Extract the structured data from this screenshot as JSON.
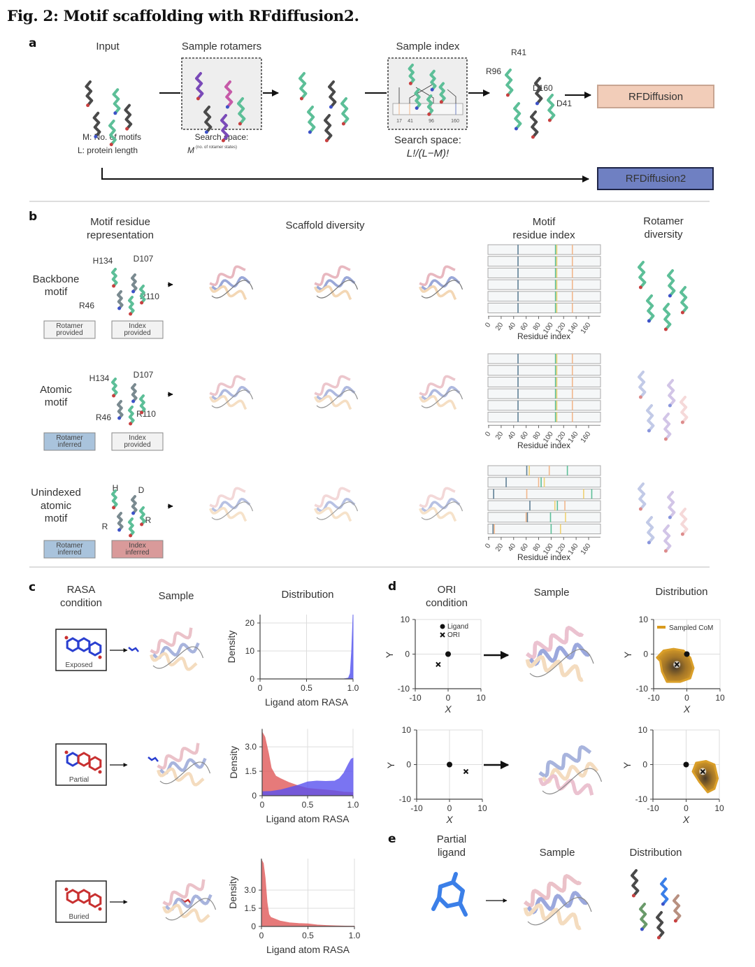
{
  "title": "Fig. 2: Motif scaffolding with RFdiffusion2.",
  "panel_a": {
    "label": "a",
    "headers": {
      "input": "Input",
      "sample_rotamers": "Sample rotamers",
      "sample_index": "Sample index"
    },
    "input_notes": [
      "M: No. of motifs",
      "L: protein length"
    ],
    "rotamer_search": {
      "label": "Search space:",
      "base": "M",
      "exponent": "(no. of rotamer states)"
    },
    "index_search": {
      "label": "Search space:",
      "formula": "L!/(L−M)!"
    },
    "index_ticks": [
      "17",
      "41",
      "96",
      "160"
    ],
    "residue_labels": [
      "R41",
      "R96",
      "D160",
      "D41"
    ],
    "methods": [
      {
        "label": "RFDiffusion",
        "color": "#f2cdb9"
      },
      {
        "label": "RFDiffusion2",
        "color": "#6f80c2"
      }
    ]
  },
  "panel_b": {
    "label": "b",
    "headers": {
      "representation": [
        "Motif residue",
        "representation"
      ],
      "scaffold": "Scaffold diversity",
      "index": [
        "Motif",
        "residue index"
      ],
      "rotamer": [
        "Rotamer",
        "diversity"
      ]
    },
    "index_axis": {
      "ticks": [
        0,
        20,
        40,
        60,
        80,
        100,
        120,
        140,
        160
      ],
      "xlabel": "Residue index",
      "xlim": [
        0,
        184
      ]
    },
    "track_colors": {
      "blue": "#5f7f95",
      "green": "#5dbf98",
      "yellow": "#efd173",
      "orange": "#f1b78c"
    },
    "rows": [
      {
        "name": [
          "Backbone",
          "motif"
        ],
        "residues": [
          "H134",
          "D107",
          "R46",
          "R110"
        ],
        "tags": [
          {
            "lines": [
              "Rotamer",
              "provided"
            ],
            "color": "#f2f2f2"
          },
          {
            "lines": [
              "Index",
              "provided"
            ],
            "color": "#f2f2f2"
          }
        ],
        "tracks": [
          [
            [
              47,
              "blue"
            ],
            [
              107,
              "green"
            ],
            [
              109,
              "yellow"
            ],
            [
              134,
              "orange"
            ]
          ],
          [
            [
              47,
              "blue"
            ],
            [
              107,
              "green"
            ],
            [
              109,
              "yellow"
            ],
            [
              134,
              "orange"
            ]
          ],
          [
            [
              47,
              "blue"
            ],
            [
              107,
              "green"
            ],
            [
              109,
              "yellow"
            ],
            [
              134,
              "orange"
            ]
          ],
          [
            [
              47,
              "blue"
            ],
            [
              107,
              "green"
            ],
            [
              109,
              "yellow"
            ],
            [
              134,
              "orange"
            ]
          ],
          [
            [
              47,
              "blue"
            ],
            [
              107,
              "green"
            ],
            [
              109,
              "yellow"
            ],
            [
              134,
              "orange"
            ]
          ],
          [
            [
              47,
              "blue"
            ],
            [
              107,
              "green"
            ],
            [
              109,
              "yellow"
            ],
            [
              134,
              "orange"
            ]
          ]
        ]
      },
      {
        "name": [
          "Atomic",
          "motif"
        ],
        "residues": [
          "H134",
          "D107",
          "R46",
          "R110"
        ],
        "tags": [
          {
            "lines": [
              "Rotamer",
              "inferred"
            ],
            "color": "#a9c3dc"
          },
          {
            "lines": [
              "Index",
              "provided"
            ],
            "color": "#f2f2f2"
          }
        ],
        "tracks": [
          [
            [
              47,
              "blue"
            ],
            [
              107,
              "green"
            ],
            [
              109,
              "yellow"
            ],
            [
              134,
              "orange"
            ]
          ],
          [
            [
              47,
              "blue"
            ],
            [
              107,
              "green"
            ],
            [
              109,
              "yellow"
            ],
            [
              134,
              "orange"
            ]
          ],
          [
            [
              47,
              "blue"
            ],
            [
              107,
              "green"
            ],
            [
              109,
              "yellow"
            ],
            [
              134,
              "orange"
            ]
          ],
          [
            [
              47,
              "blue"
            ],
            [
              107,
              "green"
            ],
            [
              109,
              "yellow"
            ],
            [
              134,
              "orange"
            ]
          ],
          [
            [
              47,
              "blue"
            ],
            [
              107,
              "green"
            ],
            [
              109,
              "yellow"
            ],
            [
              134,
              "orange"
            ]
          ],
          [
            [
              47,
              "blue"
            ],
            [
              107,
              "green"
            ],
            [
              109,
              "yellow"
            ],
            [
              134,
              "orange"
            ]
          ]
        ]
      },
      {
        "name": [
          "Unindexed",
          "atomic",
          "motif"
        ],
        "residues": [
          "H",
          "D",
          "R",
          "R"
        ],
        "tags": [
          {
            "lines": [
              "Rotamer",
              "inferred"
            ],
            "color": "#a9c3dc"
          },
          {
            "lines": [
              "Index",
              "inferred"
            ],
            "color": "#d99a9a"
          }
        ],
        "tracks": [
          [
            [
              61,
              "blue"
            ],
            [
              65,
              "yellow"
            ],
            [
              97,
              "orange"
            ],
            [
              126,
              "green"
            ]
          ],
          [
            [
              28,
              "blue"
            ],
            [
              80,
              "orange"
            ],
            [
              84,
              "green"
            ],
            [
              89,
              "yellow"
            ]
          ],
          [
            [
              8,
              "blue"
            ],
            [
              61,
              "orange"
            ],
            [
              152,
              "yellow"
            ],
            [
              165,
              "green"
            ]
          ],
          [
            [
              66,
              "blue"
            ],
            [
              106,
              "yellow"
            ],
            [
              110,
              "green"
            ],
            [
              122,
              "orange"
            ]
          ],
          [
            [
              60,
              "orange"
            ],
            [
              62,
              "blue"
            ],
            [
              99,
              "green"
            ],
            [
              123,
              "yellow"
            ]
          ],
          [
            [
              7,
              "blue"
            ],
            [
              9,
              "orange"
            ],
            [
              100,
              "green"
            ],
            [
              115,
              "yellow"
            ]
          ]
        ]
      }
    ]
  },
  "panel_c": {
    "label": "c",
    "headers": {
      "condition": [
        "RASA",
        "condition"
      ],
      "sample": "Sample",
      "distribution": "Distribution"
    },
    "conditions": [
      "Exposed",
      "Partial",
      "Buried"
    ]
  },
  "panel_d": {
    "label": "d",
    "headers": {
      "condition": [
        "ORI",
        "condition"
      ],
      "sample": "Sample",
      "distribution": "Distribution"
    }
  },
  "panel_e": {
    "label": "e",
    "headers": {
      "condition": [
        "Partial",
        "ligand"
      ],
      "sample": "Sample",
      "distribution": "Distribution"
    }
  },
  "chart_data": [
    {
      "type": "area",
      "panel": "c",
      "condition": "Exposed",
      "xlabel": "Ligand atom RASA",
      "ylabel": "Density",
      "xlim": [
        0,
        1
      ],
      "ylim": [
        0,
        23
      ],
      "xticks": [
        0,
        0.5,
        1.0
      ],
      "xticklabels": [
        "0",
        "0.5",
        "1.0"
      ],
      "yticks": [
        0,
        10,
        20
      ],
      "yticklabels": [
        "0",
        "10",
        "20"
      ],
      "grid": true,
      "series": [
        {
          "color": "#4f4ff0",
          "x": [
            0,
            0.9,
            0.95,
            0.97,
            0.985,
            0.995,
            1.0
          ],
          "y": [
            0,
            0,
            0.3,
            2,
            10,
            18,
            23
          ]
        }
      ]
    },
    {
      "type": "area",
      "panel": "c",
      "condition": "Partial",
      "xlabel": "Ligand atom RASA",
      "ylabel": "Density",
      "xlim": [
        0,
        1
      ],
      "ylim": [
        0,
        4.1
      ],
      "xticks": [
        0,
        0.5,
        1.0
      ],
      "xticklabels": [
        "0",
        "0.5",
        "1.0"
      ],
      "yticks": [
        0,
        1.5,
        3.0
      ],
      "yticklabels": [
        "0",
        "1.5",
        "3.0"
      ],
      "grid": true,
      "series": [
        {
          "color": "#e05a5a",
          "x": [
            0,
            0.03,
            0.07,
            0.1,
            0.15,
            0.2,
            0.3,
            0.4,
            0.5,
            0.6,
            0.7,
            0.8,
            0.9,
            1.0
          ],
          "y": [
            3.9,
            3.6,
            2.6,
            1.7,
            1.2,
            1.05,
            0.8,
            0.6,
            0.45,
            0.4,
            0.35,
            0.3,
            0.22,
            0.2
          ]
        },
        {
          "color": "#5a52f0",
          "x": [
            0,
            0.1,
            0.2,
            0.3,
            0.4,
            0.5,
            0.6,
            0.7,
            0.8,
            0.85,
            0.9,
            0.95,
            0.98,
            1.0
          ],
          "y": [
            0.25,
            0.27,
            0.35,
            0.5,
            0.65,
            0.85,
            0.9,
            0.88,
            0.9,
            1.05,
            1.4,
            1.95,
            2.25,
            2.3
          ]
        }
      ]
    },
    {
      "type": "area",
      "panel": "c",
      "condition": "Buried",
      "xlabel": "Ligand atom RASA",
      "ylabel": "Density",
      "xlim": [
        0,
        1
      ],
      "ylim": [
        0,
        5.6
      ],
      "xticks": [
        0,
        0.5,
        1.0
      ],
      "xticklabels": [
        "0",
        "0.5",
        "1.0"
      ],
      "yticks": [
        0,
        1.5,
        3.0
      ],
      "yticklabels": [
        "0",
        "1.5",
        "3.0"
      ],
      "grid": true,
      "series": [
        {
          "color": "#e05a5a",
          "x": [
            0,
            0.02,
            0.04,
            0.06,
            0.08,
            0.1,
            0.15,
            0.2,
            0.3,
            0.4,
            0.5,
            0.6,
            0.7,
            0.8,
            0.9,
            1.0
          ],
          "y": [
            5.5,
            5.2,
            4.0,
            2.0,
            1.0,
            0.75,
            0.6,
            0.45,
            0.3,
            0.25,
            0.22,
            0.12,
            0.08,
            0.05,
            0.03,
            0.02
          ]
        }
      ]
    },
    {
      "type": "scatter",
      "panel": "d",
      "role": "ORI condition",
      "xlabel": "X",
      "ylabel": "Y",
      "xlim": [
        -10,
        10
      ],
      "ylim": [
        -10,
        10
      ],
      "xticks": [
        -10,
        0,
        10
      ],
      "yticks": [
        -10,
        0,
        10
      ],
      "grid": true,
      "legend": "top-right",
      "series": [
        {
          "name": "Ligand",
          "marker": "circle",
          "x": [
            0
          ],
          "y": [
            0
          ]
        },
        {
          "name": "ORI",
          "marker": "x",
          "x": [
            -3
          ],
          "y": [
            -3
          ]
        }
      ]
    },
    {
      "type": "scatter",
      "panel": "d",
      "role": "ORI condition",
      "xlabel": "X",
      "ylabel": "Y",
      "xlim": [
        -10,
        10
      ],
      "ylim": [
        -10,
        10
      ],
      "xticks": [
        -10,
        0,
        10
      ],
      "yticks": [
        -10,
        0,
        10
      ],
      "grid": true,
      "series": [
        {
          "marker": "circle",
          "x": [
            0
          ],
          "y": [
            0
          ]
        },
        {
          "marker": "x",
          "x": [
            5
          ],
          "y": [
            -2
          ]
        }
      ]
    },
    {
      "type": "scatter",
      "panel": "d",
      "role": "Distribution",
      "xlabel": "X",
      "ylabel": "Y",
      "xlim": [
        -10,
        10
      ],
      "ylim": [
        -10,
        10
      ],
      "xticks": [
        -10,
        0,
        10
      ],
      "yticks": [
        -10,
        0,
        10
      ],
      "grid": true,
      "legend": "top-right",
      "region": {
        "name": "Sampled CoM",
        "color": "#d99a1e",
        "center": [
          -3,
          -4
        ],
        "x": [
          -7,
          -4,
          -1,
          1,
          2,
          1,
          -2,
          -6,
          -7.5,
          -8,
          -9,
          -8
        ],
        "y": [
          1,
          1.5,
          1,
          -1,
          -4,
          -7,
          -8,
          -8,
          -5,
          -2,
          -1,
          0
        ]
      },
      "series": [
        {
          "marker": "circle",
          "x": [
            0
          ],
          "y": [
            0
          ]
        },
        {
          "marker": "x",
          "x": [
            -3
          ],
          "y": [
            -3
          ]
        }
      ]
    },
    {
      "type": "scatter",
      "panel": "d",
      "role": "Distribution",
      "xlabel": "X",
      "ylabel": "Y",
      "xlim": [
        -10,
        10
      ],
      "ylim": [
        -10,
        10
      ],
      "xticks": [
        -10,
        0,
        10
      ],
      "yticks": [
        -10,
        0,
        10
      ],
      "grid": true,
      "region": {
        "color": "#d99a1e",
        "center": [
          5.5,
          -3
        ],
        "x": [
          3,
          6,
          8.5,
          9.5,
          8.5,
          6.5,
          4,
          2
        ],
        "y": [
          0.5,
          1,
          0,
          -4,
          -7,
          -8,
          -5,
          -2
        ]
      },
      "series": [
        {
          "marker": "circle",
          "x": [
            0
          ],
          "y": [
            0
          ]
        },
        {
          "marker": "x",
          "x": [
            5
          ],
          "y": [
            -2
          ]
        }
      ]
    }
  ]
}
